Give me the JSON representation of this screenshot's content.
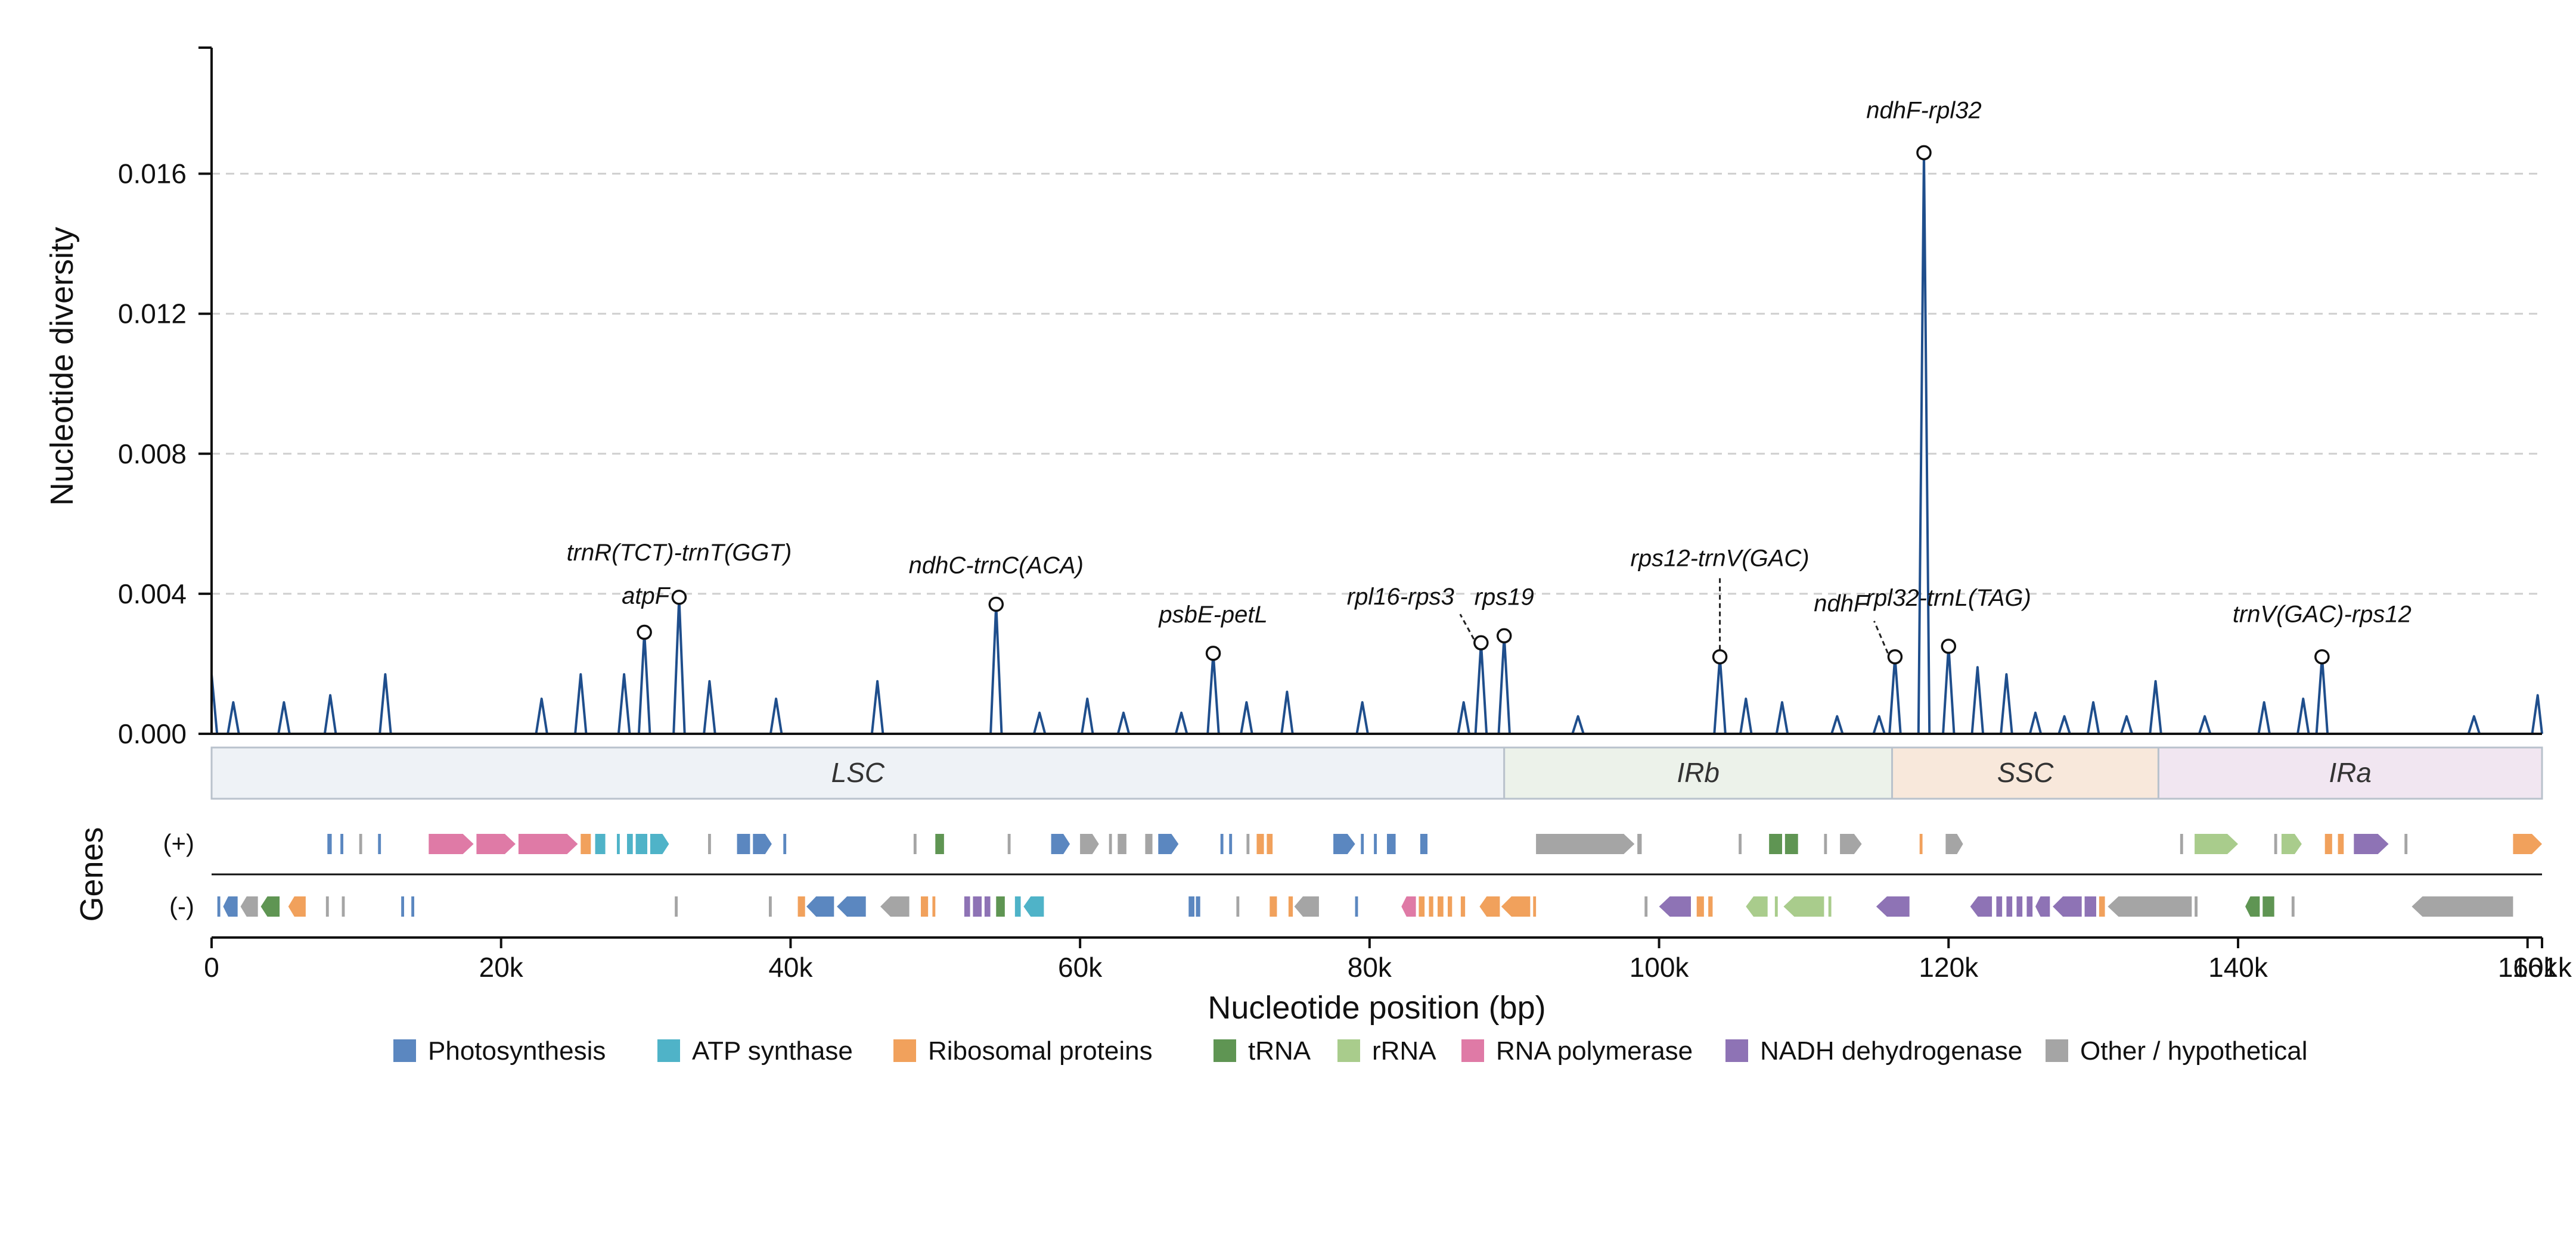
{
  "chart_data": {
    "type": "line",
    "xlabel": "Nucleotide position (bp)",
    "ylabel": "Nucleotide diversity",
    "ylim": [
      0,
      0.0196
    ],
    "xlim": [
      0,
      161000
    ],
    "yticks": [
      0,
      0.004,
      0.008,
      0.012,
      0.016
    ],
    "ytick_labels": [
      "0.000",
      "0.004",
      "0.008",
      "0.012",
      "0.016"
    ],
    "xticks": [
      0,
      20000,
      40000,
      60000,
      80000,
      100000,
      120000,
      140000,
      160000,
      161000
    ],
    "xtick_labels": [
      "0",
      "20k",
      "40k",
      "60k",
      "80k",
      "100k",
      "120k",
      "140k",
      "160k",
      "161k"
    ],
    "grid": "horizontal-dashed",
    "line_color": "#1f4e8c",
    "peaks": [
      [
        0,
        0.0017
      ],
      [
        1500,
        0.0009
      ],
      [
        5000,
        0.0009
      ],
      [
        8200,
        0.0011
      ],
      [
        12000,
        0.0017
      ],
      [
        22800,
        0.001
      ],
      [
        25500,
        0.0017
      ],
      [
        28500,
        0.0017
      ],
      [
        29900,
        0.0029
      ],
      [
        32300,
        0.0039
      ],
      [
        34400,
        0.0015
      ],
      [
        39000,
        0.001
      ],
      [
        46000,
        0.0015
      ],
      [
        54200,
        0.0037
      ],
      [
        57200,
        0.0006
      ],
      [
        60500,
        0.001
      ],
      [
        63000,
        0.0006
      ],
      [
        67000,
        0.0006
      ],
      [
        69200,
        0.0023
      ],
      [
        71500,
        0.0009
      ],
      [
        74300,
        0.0012
      ],
      [
        79500,
        0.0009
      ],
      [
        86500,
        0.0009
      ],
      [
        87700,
        0.0026
      ],
      [
        89300,
        0.0028
      ],
      [
        94400,
        0.0005
      ],
      [
        104200,
        0.0022
      ],
      [
        106000,
        0.001
      ],
      [
        108500,
        0.0009
      ],
      [
        112300,
        0.0005
      ],
      [
        115200,
        0.0005
      ],
      [
        116300,
        0.0022
      ],
      [
        118300,
        0.0166
      ],
      [
        120000,
        0.0025
      ],
      [
        122000,
        0.0019
      ],
      [
        124000,
        0.0017
      ],
      [
        126000,
        0.0006
      ],
      [
        128000,
        0.0005
      ],
      [
        130000,
        0.0009
      ],
      [
        132300,
        0.0005
      ],
      [
        134300,
        0.0015
      ],
      [
        137700,
        0.0005
      ],
      [
        141800,
        0.0009
      ],
      [
        144500,
        0.001
      ],
      [
        145800,
        0.0022
      ],
      [
        156300,
        0.0005
      ],
      [
        160700,
        0.0011
      ]
    ],
    "annotations": [
      {
        "label": "trnR(TCT)-trnT(GGT)",
        "x": 32300,
        "y": 0.0039
      },
      {
        "label": "atpF",
        "x": 29900,
        "y": 0.0029
      },
      {
        "label": "ndhC-trnC(ACA)",
        "x": 54200,
        "y": 0.0037
      },
      {
        "label": "psbE-petL",
        "x": 69200,
        "y": 0.0023
      },
      {
        "label": "rpl16-rps3",
        "x": 87700,
        "y": 0.0026
      },
      {
        "label": "rps19",
        "x": 89300,
        "y": 0.0028
      },
      {
        "label": "rps12-trnV(GAC)",
        "x": 104200,
        "y": 0.0022
      },
      {
        "label": "ndhF",
        "x": 116300,
        "y": 0.0022
      },
      {
        "label": "ndhF-rpl32",
        "x": 118300,
        "y": 0.0166
      },
      {
        "label": "rpl32-trnL(TAG)",
        "x": 120000,
        "y": 0.0025
      },
      {
        "label": "trnV(GAC)-rps12",
        "x": 145800,
        "y": 0.0022
      }
    ],
    "regions": [
      {
        "label": "LSC",
        "start": 0,
        "end": 89300,
        "color": "#eef2f6"
      },
      {
        "label": "IRb",
        "start": 89300,
        "end": 116100,
        "color": "#ecf2ea"
      },
      {
        "label": "SSC",
        "start": 116100,
        "end": 134500,
        "color": "#f8e8db"
      },
      {
        "label": "IRa",
        "start": 134500,
        "end": 161000,
        "color": "#f1e6f1"
      }
    ],
    "genes_label": "Genes",
    "strand_labels": [
      "(+)",
      "(-)"
    ],
    "gene_categories": [
      {
        "key": "photo",
        "label": "Photosynthesis",
        "color": "#5b87c0"
      },
      {
        "key": "atp",
        "label": "ATP synthase",
        "color": "#4fb3c8"
      },
      {
        "key": "ribo",
        "label": "Ribosomal proteins",
        "color": "#f1a15c"
      },
      {
        "key": "trna",
        "label": "tRNA",
        "color": "#5f9553"
      },
      {
        "key": "rrna",
        "label": "rRNA",
        "color": "#a9cc8c"
      },
      {
        "key": "rnap",
        "label": "RNA polymerase",
        "color": "#df7aa6"
      },
      {
        "key": "ndh",
        "label": "NADH dehydrogenase",
        "color": "#8e73b5"
      },
      {
        "key": "other",
        "label": "Other / hypothetical",
        "color": "#a5a5a5"
      }
    ],
    "genes_plus": [
      [
        8000,
        8300,
        "photo"
      ],
      [
        8900,
        9100,
        "photo"
      ],
      [
        10200,
        10400,
        "other"
      ],
      [
        11500,
        11700,
        "photo"
      ],
      [
        15000,
        18100,
        "rnap"
      ],
      [
        18300,
        21000,
        "rnap"
      ],
      [
        21200,
        25300,
        "rnap"
      ],
      [
        25500,
        26200,
        "ribo"
      ],
      [
        26500,
        27200,
        "atp"
      ],
      [
        28000,
        28200,
        "atp"
      ],
      [
        28700,
        29100,
        "atp"
      ],
      [
        29300,
        30100,
        "atp"
      ],
      [
        30300,
        31600,
        "atp"
      ],
      [
        34300,
        34500,
        "other"
      ],
      [
        36300,
        37200,
        "photo"
      ],
      [
        37400,
        38700,
        "photo"
      ],
      [
        39500,
        39700,
        "photo"
      ],
      [
        48500,
        48700,
        "other"
      ],
      [
        50000,
        50600,
        "trna"
      ],
      [
        55000,
        55200,
        "other"
      ],
      [
        58000,
        59300,
        "photo"
      ],
      [
        60000,
        61300,
        "other"
      ],
      [
        62000,
        62200,
        "other"
      ],
      [
        62600,
        63200,
        "other"
      ],
      [
        64500,
        65000,
        "other"
      ],
      [
        65400,
        66800,
        "photo"
      ],
      [
        69700,
        69900,
        "photo"
      ],
      [
        70300,
        70500,
        "photo"
      ],
      [
        71500,
        71700,
        "other"
      ],
      [
        72200,
        72700,
        "ribo"
      ],
      [
        72900,
        73300,
        "ribo"
      ],
      [
        77500,
        79000,
        "photo"
      ],
      [
        79400,
        79600,
        "photo"
      ],
      [
        80300,
        80500,
        "photo"
      ],
      [
        81200,
        81800,
        "photo"
      ],
      [
        83500,
        84000,
        "photo"
      ],
      [
        91500,
        98300,
        "other"
      ],
      [
        98500,
        98800,
        "other"
      ],
      [
        105500,
        105700,
        "other"
      ],
      [
        107600,
        108500,
        "trna"
      ],
      [
        108700,
        109600,
        "trna"
      ],
      [
        111400,
        111600,
        "other"
      ],
      [
        112500,
        114000,
        "other"
      ],
      [
        118000,
        118200,
        "ribo"
      ],
      [
        119800,
        121000,
        "other"
      ],
      [
        136000,
        136200,
        "other"
      ],
      [
        137000,
        140000,
        "rrna"
      ],
      [
        142500,
        142700,
        "other"
      ],
      [
        143000,
        144400,
        "rrna"
      ],
      [
        146000,
        146500,
        "ribo"
      ],
      [
        146900,
        147300,
        "ribo"
      ],
      [
        148000,
        150400,
        "ndh"
      ],
      [
        151500,
        151700,
        "other"
      ],
      [
        159000,
        161000,
        "ribo"
      ]
    ],
    "genes_minus": [
      [
        400,
        600,
        "photo"
      ],
      [
        800,
        1800,
        "photo"
      ],
      [
        2000,
        3200,
        "other"
      ],
      [
        3400,
        4700,
        "trna"
      ],
      [
        5300,
        6500,
        "ribo"
      ],
      [
        7900,
        8100,
        "other"
      ],
      [
        9000,
        9200,
        "other"
      ],
      [
        13100,
        13300,
        "photo"
      ],
      [
        13800,
        14000,
        "photo"
      ],
      [
        32000,
        32200,
        "other"
      ],
      [
        38500,
        38700,
        "other"
      ],
      [
        40500,
        41000,
        "ribo"
      ],
      [
        41100,
        43000,
        "photo"
      ],
      [
        43200,
        45200,
        "photo"
      ],
      [
        46200,
        48200,
        "other"
      ],
      [
        49000,
        49500,
        "ribo"
      ],
      [
        49800,
        50000,
        "ribo"
      ],
      [
        52000,
        52400,
        "ndh"
      ],
      [
        52600,
        53200,
        "ndh"
      ],
      [
        53400,
        53800,
        "ndh"
      ],
      [
        54200,
        54800,
        "trna"
      ],
      [
        55500,
        55900,
        "atp"
      ],
      [
        56100,
        57500,
        "atp"
      ],
      [
        67500,
        67900,
        "photo"
      ],
      [
        68000,
        68300,
        "photo"
      ],
      [
        70800,
        71000,
        "other"
      ],
      [
        73100,
        73600,
        "ribo"
      ],
      [
        74400,
        74700,
        "ribo"
      ],
      [
        74800,
        76500,
        "other"
      ],
      [
        79000,
        79200,
        "photo"
      ],
      [
        82200,
        83200,
        "rnap"
      ],
      [
        83400,
        83800,
        "ribo"
      ],
      [
        84100,
        84400,
        "ribo"
      ],
      [
        84700,
        85100,
        "ribo"
      ],
      [
        85400,
        85700,
        "ribo"
      ],
      [
        86300,
        86600,
        "ribo"
      ],
      [
        87600,
        89000,
        "ribo"
      ],
      [
        89100,
        91100,
        "ribo"
      ],
      [
        91300,
        91500,
        "ribo"
      ],
      [
        99000,
        99200,
        "other"
      ],
      [
        100000,
        102200,
        "ndh"
      ],
      [
        102600,
        103100,
        "ribo"
      ],
      [
        103400,
        103700,
        "ribo"
      ],
      [
        106000,
        107500,
        "rrna"
      ],
      [
        108000,
        108200,
        "rrna"
      ],
      [
        108600,
        111400,
        "rrna"
      ],
      [
        111700,
        111900,
        "rrna"
      ],
      [
        115000,
        117300,
        "ndh"
      ],
      [
        121500,
        123000,
        "ndh"
      ],
      [
        123300,
        123700,
        "ndh"
      ],
      [
        124000,
        124400,
        "ndh"
      ],
      [
        124700,
        125100,
        "ndh"
      ],
      [
        125400,
        125800,
        "ndh"
      ],
      [
        126000,
        127000,
        "ndh"
      ],
      [
        127200,
        129200,
        "ndh"
      ],
      [
        129400,
        130200,
        "ndh"
      ],
      [
        130400,
        130800,
        "ribo"
      ],
      [
        131000,
        136800,
        "other"
      ],
      [
        137000,
        137200,
        "other"
      ],
      [
        140500,
        141500,
        "trna"
      ],
      [
        141700,
        142500,
        "trna"
      ],
      [
        143700,
        143900,
        "other"
      ],
      [
        152000,
        159000,
        "other"
      ]
    ]
  }
}
